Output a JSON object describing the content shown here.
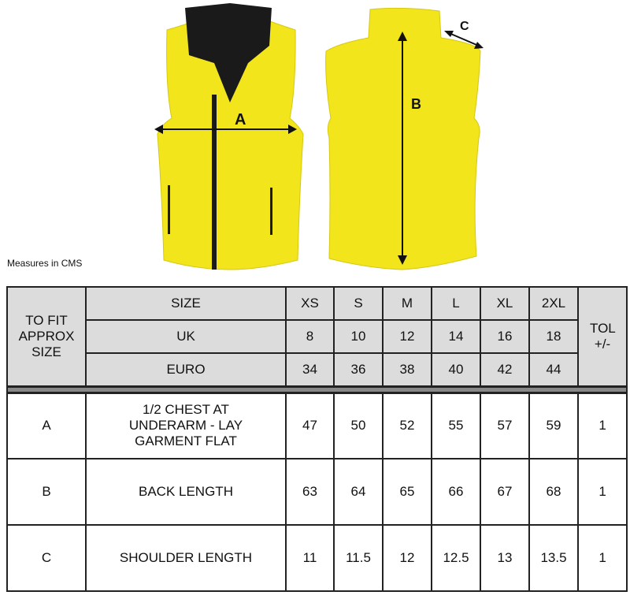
{
  "illustration": {
    "labels": {
      "a": "A",
      "b": "B",
      "c": "C"
    },
    "garment_color": "#f2e51c",
    "collar_color": "#1a1a1a"
  },
  "note": "Measures in CMS",
  "table": {
    "fit_label": "TO FIT APPROX SIZE",
    "tol_label": "TOL +/-",
    "header_rows": [
      {
        "label": "SIZE",
        "values": [
          "XS",
          "S",
          "M",
          "L",
          "XL",
          "2XL"
        ]
      },
      {
        "label": "UK",
        "values": [
          "8",
          "10",
          "12",
          "14",
          "16",
          "18"
        ]
      },
      {
        "label": "EURO",
        "values": [
          "34",
          "36",
          "38",
          "40",
          "42",
          "44"
        ]
      }
    ],
    "rows": [
      {
        "code": "A",
        "label": "1/2 CHEST AT UNDERARM - LAY GARMENT FLAT",
        "values": [
          "47",
          "50",
          "52",
          "55",
          "57",
          "59"
        ],
        "tol": "1"
      },
      {
        "code": "B",
        "label": "BACK LENGTH",
        "values": [
          "63",
          "64",
          "65",
          "66",
          "67",
          "68"
        ],
        "tol": "1"
      },
      {
        "code": "C",
        "label": "SHOULDER LENGTH",
        "values": [
          "11",
          "11.5",
          "12",
          "12.5",
          "13",
          "13.5"
        ],
        "tol": "1"
      }
    ]
  }
}
